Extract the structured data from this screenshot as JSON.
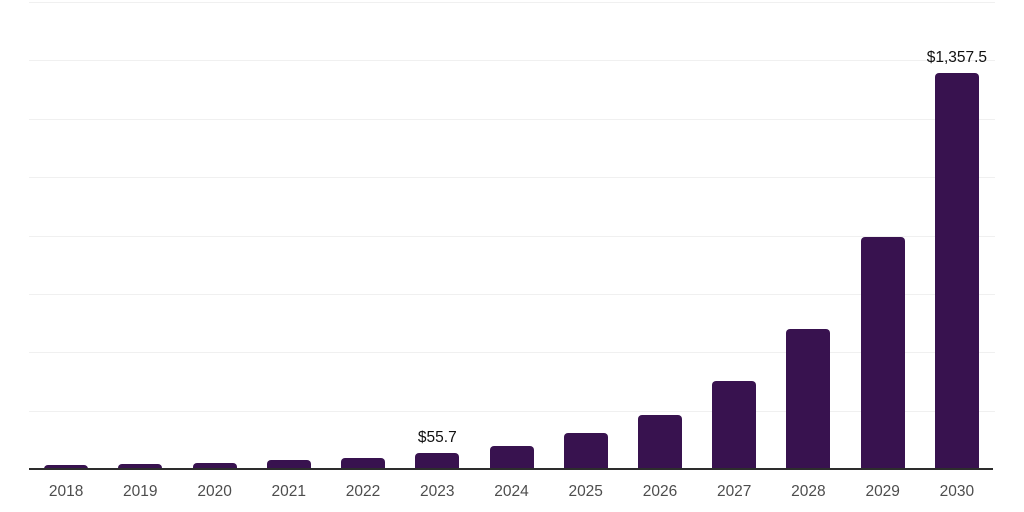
{
  "chart_data": {
    "type": "bar",
    "title": "",
    "xlabel": "",
    "ylabel": "",
    "categories": [
      "2018",
      "2019",
      "2020",
      "2021",
      "2022",
      "2023",
      "2024",
      "2025",
      "2026",
      "2027",
      "2028",
      "2029",
      "2030"
    ],
    "values": [
      15.5,
      19.0,
      21.5,
      30.5,
      37.5,
      55.7,
      77.5,
      122.0,
      185.5,
      300.0,
      479.0,
      796.0,
      1357.5
    ],
    "data_labels": {
      "2023": "$55.7",
      "2030": "$1,357.5"
    },
    "ylim": [
      0,
      1600
    ],
    "grid_interval": 200,
    "grid": "horizontal, unlabeled",
    "legend_position": "none",
    "colors": {
      "bar": "#38124f",
      "gridline": "#f0f0f0",
      "axis_line": "#2d2d2d",
      "tick_label": "#4d4d4d",
      "data_label": "#111111",
      "background": "#ffffff"
    }
  }
}
